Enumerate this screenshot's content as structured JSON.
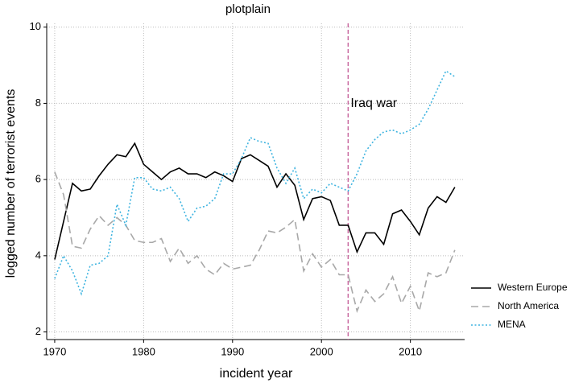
{
  "chart_data": {
    "type": "line",
    "title": "plotplain",
    "xlabel": "incident year",
    "ylabel": "logged number of terrorist events",
    "x": [
      1970,
      1971,
      1972,
      1973,
      1974,
      1975,
      1976,
      1977,
      1978,
      1979,
      1980,
      1981,
      1982,
      1983,
      1984,
      1985,
      1986,
      1987,
      1988,
      1989,
      1990,
      1991,
      1992,
      1993,
      1994,
      1995,
      1996,
      1997,
      1998,
      1999,
      2000,
      2001,
      2002,
      2003,
      2004,
      2005,
      2006,
      2007,
      2008,
      2009,
      2010,
      2011,
      2012,
      2013,
      2014,
      2015
    ],
    "series": [
      {
        "name": "Western Europe",
        "color": "#000000",
        "style": "solid",
        "values": [
          3.9,
          4.9,
          5.9,
          5.7,
          5.75,
          6.1,
          6.4,
          6.65,
          6.6,
          6.95,
          6.4,
          6.2,
          6.0,
          6.2,
          6.3,
          6.15,
          6.15,
          6.05,
          6.2,
          6.1,
          5.95,
          6.55,
          6.65,
          6.5,
          6.35,
          5.8,
          6.15,
          5.85,
          4.95,
          5.5,
          5.55,
          5.45,
          4.8,
          4.8,
          4.1,
          4.6,
          4.6,
          4.3,
          5.1,
          5.2,
          4.9,
          4.55,
          5.25,
          5.55,
          5.4,
          5.8
        ]
      },
      {
        "name": "North America",
        "color": "#a8a8a8",
        "style": "dashed",
        "values": [
          6.2,
          5.6,
          4.25,
          4.2,
          4.7,
          5.05,
          4.8,
          5.0,
          4.8,
          4.4,
          4.35,
          4.35,
          4.45,
          3.85,
          4.2,
          3.8,
          4.0,
          3.65,
          3.5,
          3.8,
          3.65,
          3.7,
          3.75,
          4.15,
          4.65,
          4.6,
          4.75,
          4.95,
          3.6,
          4.05,
          3.7,
          3.9,
          3.5,
          3.5,
          2.55,
          3.1,
          2.8,
          3.0,
          3.45,
          2.75,
          3.2,
          2.55,
          3.55,
          3.45,
          3.55,
          4.15
        ]
      },
      {
        "name": "MENA",
        "color": "#3fb4e0",
        "style": "dotted",
        "values": [
          3.4,
          4.0,
          3.6,
          3.0,
          3.75,
          3.8,
          4.0,
          5.35,
          4.8,
          6.05,
          6.05,
          5.75,
          5.7,
          5.8,
          5.5,
          4.9,
          5.25,
          5.3,
          5.5,
          6.15,
          6.15,
          6.55,
          7.1,
          7.0,
          6.95,
          6.3,
          5.9,
          6.3,
          5.5,
          5.75,
          5.65,
          5.9,
          5.8,
          5.7,
          6.15,
          6.75,
          7.05,
          7.25,
          7.3,
          7.2,
          7.3,
          7.45,
          7.85,
          8.35,
          8.85,
          8.7
        ]
      }
    ],
    "xlim": [
      1969.1,
      2016.1
    ],
    "ylim": [
      1.8,
      10.1
    ],
    "xticks": [
      1970,
      1980,
      1990,
      2000,
      2010
    ],
    "yticks": [
      2,
      4,
      6,
      8,
      10
    ],
    "grid": true,
    "legend": "right",
    "vline": {
      "x": 2003,
      "color": "#c9699f",
      "label": "Iraq war"
    }
  }
}
